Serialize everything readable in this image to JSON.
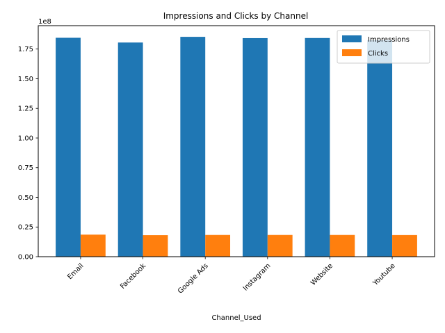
{
  "chart_data": {
    "type": "bar",
    "title": "Impressions and Clicks by Channel",
    "xlabel": "Channel_Used",
    "ylabel": "",
    "y_scale_label": "1e8",
    "categories": [
      "Email",
      "Facebook",
      "Google Ads",
      "Instagram",
      "Website",
      "Youtube"
    ],
    "series": [
      {
        "name": "Impressions",
        "color": "#1f77b4",
        "values": [
          184500000,
          180500000,
          185300000,
          184200000,
          184300000,
          182500000
        ]
      },
      {
        "name": "Clicks",
        "color": "#ff7f0e",
        "values": [
          18600000,
          18100000,
          18300000,
          18300000,
          18300000,
          18200000
        ]
      }
    ],
    "yticks": [
      0,
      25000000,
      50000000,
      75000000,
      100000000,
      125000000,
      150000000,
      175000000
    ],
    "ytick_labels": [
      "0.00",
      "0.25",
      "0.50",
      "0.75",
      "1.00",
      "1.25",
      "1.50",
      "1.75"
    ],
    "ylim": [
      0,
      194700000
    ],
    "grid": false,
    "legend_position": "top-right"
  }
}
